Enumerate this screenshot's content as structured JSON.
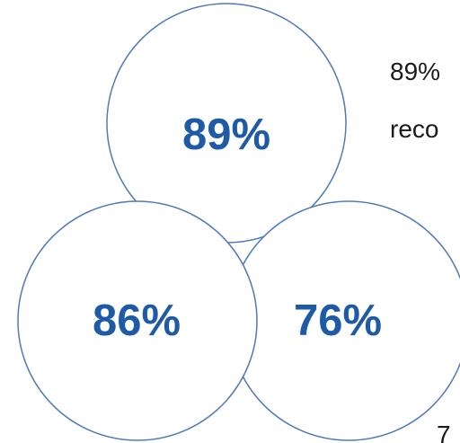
{
  "circles": {
    "top": {
      "value": "89%"
    },
    "bottom_left": {
      "value": "86%"
    },
    "bottom_right": {
      "value": "76%"
    }
  },
  "side_text": {
    "line1": "89%",
    "line2": "reco",
    "bottom": "7"
  },
  "colors": {
    "value_text": "#1f5aa6",
    "circle_stroke": "#4f7ab8",
    "circle_fill": "#ffffff"
  }
}
